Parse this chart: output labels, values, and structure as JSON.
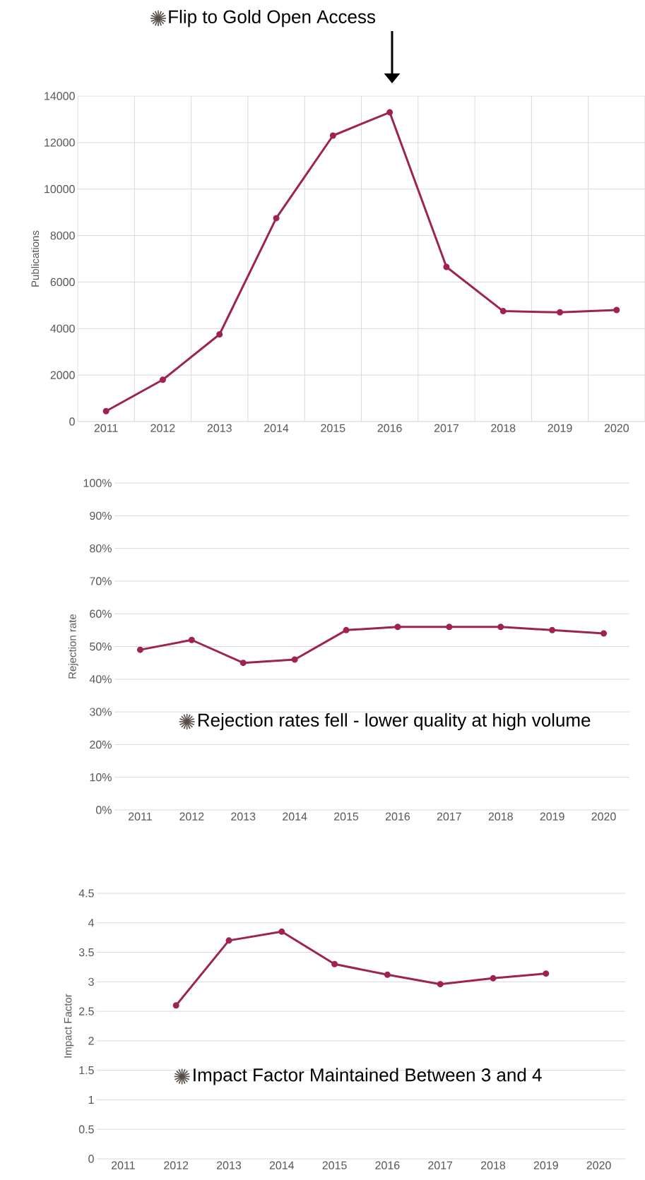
{
  "chart_data": [
    {
      "type": "line",
      "ylabel": "Publications",
      "categories": [
        "2011",
        "2012",
        "2013",
        "2014",
        "2015",
        "2016",
        "2017",
        "2018",
        "2019",
        "2020"
      ],
      "series": [
        {
          "color": "#9e2352",
          "values": [
            450,
            1800,
            3750,
            8750,
            12300,
            13300,
            6650,
            4750,
            4700,
            4800
          ]
        }
      ],
      "ylim": [
        0,
        14000
      ],
      "yticks": [
        0,
        2000,
        4000,
        6000,
        8000,
        10000,
        12000,
        14000
      ],
      "grid": true,
      "marker": "circle",
      "line_style": "solid",
      "annotations": [
        "Flip to Gold Open Access"
      ]
    },
    {
      "type": "line",
      "ylabel": "Rejection rate",
      "categories": [
        "2011",
        "2012",
        "2013",
        "2014",
        "2015",
        "2016",
        "2017",
        "2018",
        "2019",
        "2020"
      ],
      "series": [
        {
          "color": "#9e2352",
          "values": [
            49,
            52,
            45,
            46,
            55,
            56,
            56,
            56,
            55,
            54
          ]
        }
      ],
      "ylim": [
        0,
        100
      ],
      "yticks": [
        {
          "value": 0,
          "label": "0%"
        },
        {
          "value": 10,
          "label": "10%"
        },
        {
          "value": 20,
          "label": "20%"
        },
        {
          "value": 30,
          "label": "30%"
        },
        {
          "value": 40,
          "label": "40%"
        },
        {
          "value": 50,
          "label": "50%"
        },
        {
          "value": 60,
          "label": "60%"
        },
        {
          "value": 70,
          "label": "70%"
        },
        {
          "value": 80,
          "label": "80%"
        },
        {
          "value": 90,
          "label": "90%"
        },
        {
          "value": 100,
          "label": "100%"
        }
      ],
      "grid": "y",
      "marker": "circle",
      "line_style": "solid",
      "annotations": [
        "Rejection rates fell - lower quality at high volume"
      ]
    },
    {
      "type": "line",
      "ylabel": "Impact Factor",
      "categories": [
        "2011",
        "2012",
        "2013",
        "2014",
        "2015",
        "2016",
        "2017",
        "2018",
        "2019",
        "2020"
      ],
      "series": [
        {
          "color": "#9e2352",
          "values": [
            null,
            2.6,
            3.7,
            3.85,
            3.3,
            3.12,
            2.96,
            3.06,
            3.14,
            null
          ]
        }
      ],
      "ylim": [
        0,
        4.5
      ],
      "yticks": [
        0,
        0.5,
        1,
        1.5,
        2,
        2.5,
        3,
        3.5,
        4,
        4.5
      ],
      "grid": "y",
      "marker": "circle",
      "line_style": "solid",
      "annotations": [
        "Impact Factor Maintained Between 3 and 4"
      ]
    }
  ]
}
